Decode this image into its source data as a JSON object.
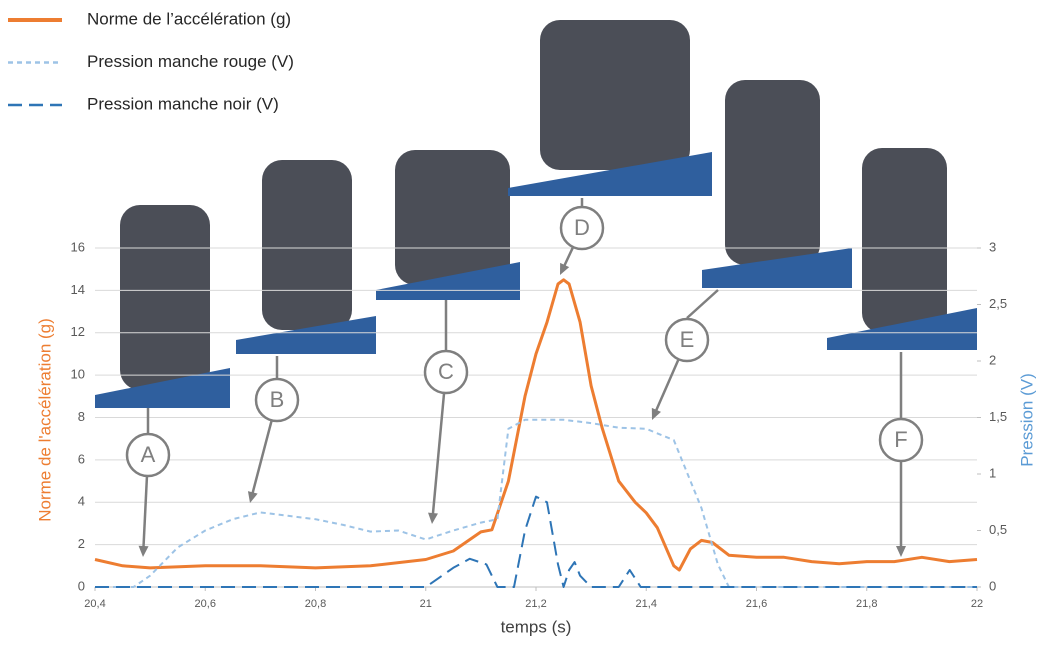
{
  "chart_data": {
    "type": "line",
    "xlabel": "temps (s)",
    "ylabel": "Norme de l'accélération (g)",
    "y2label": "Pression (V)",
    "xlim": [
      20.4,
      22
    ],
    "xticks": [
      {
        "value": 20.4,
        "label": "20,4"
      },
      {
        "value": 20.6,
        "label": "20,6"
      },
      {
        "value": 20.8,
        "label": "20,8"
      },
      21,
      {
        "value": 21.2,
        "label": "21,2"
      },
      {
        "value": 21.4,
        "label": "21,4"
      },
      {
        "value": 21.6,
        "label": "21,6"
      },
      {
        "value": 21.8,
        "label": "21,8"
      },
      22
    ],
    "ylim": [
      0,
      16
    ],
    "yticks": [
      0,
      2,
      4,
      6,
      8,
      10,
      12,
      14,
      16
    ],
    "y2lim": [
      0,
      3
    ],
    "y2ticks": [
      0,
      {
        "value": 0.5,
        "label": "0,5"
      },
      1,
      {
        "value": 1.5,
        "label": "1,5"
      },
      2,
      {
        "value": 2.5,
        "label": "2,5"
      },
      3
    ],
    "grid": true,
    "legend": "top-left",
    "annotations": [
      "A",
      "B",
      "C",
      "D",
      "E",
      "F"
    ],
    "series": [
      {
        "name": "Norme de l’accélération (g)",
        "color": "#ed7d31",
        "dash": "solid",
        "x": [
          20.4,
          20.45,
          20.5,
          20.6,
          20.7,
          20.8,
          20.9,
          21.0,
          21.05,
          21.1,
          21.12,
          21.15,
          21.18,
          21.2,
          21.22,
          21.24,
          21.25,
          21.26,
          21.28,
          21.3,
          21.32,
          21.35,
          21.38,
          21.4,
          21.42,
          21.45,
          21.46,
          21.48,
          21.5,
          21.52,
          21.55,
          21.6,
          21.65,
          21.7,
          21.75,
          21.8,
          21.85,
          21.9,
          21.95,
          22.0
        ],
        "values": [
          1.3,
          1.0,
          0.9,
          1.0,
          1.0,
          0.9,
          1.0,
          1.3,
          1.7,
          2.6,
          2.7,
          5,
          9,
          11,
          12.5,
          14.3,
          14.5,
          14.3,
          12.5,
          9.5,
          7.5,
          5,
          4,
          3.5,
          2.8,
          1.0,
          0.8,
          1.8,
          2.2,
          2.1,
          1.5,
          1.4,
          1.4,
          1.2,
          1.1,
          1.2,
          1.2,
          1.4,
          1.2,
          1.3
        ]
      },
      {
        "name": "Pression manche rouge (V)",
        "color": "#9dc3e6",
        "dash": "short",
        "axis": "y2",
        "x": [
          20.4,
          20.47,
          20.5,
          20.55,
          20.6,
          20.65,
          20.7,
          20.75,
          20.8,
          20.85,
          20.9,
          20.95,
          21.0,
          21.05,
          21.1,
          21.13,
          21.15,
          21.18,
          21.25,
          21.3,
          21.35,
          21.4,
          21.45,
          21.5,
          21.53,
          21.55,
          22.0
        ],
        "values": [
          0,
          0,
          0.1,
          0.35,
          0.5,
          0.6,
          0.66,
          0.63,
          0.6,
          0.55,
          0.49,
          0.5,
          0.42,
          0.5,
          0.57,
          0.6,
          1.4,
          1.48,
          1.48,
          1.45,
          1.41,
          1.4,
          1.3,
          0.7,
          0.2,
          0,
          0
        ]
      },
      {
        "name": "Pression manche noir (V)",
        "color": "#2e75b6",
        "dash": "long",
        "axis": "y2",
        "x": [
          20.4,
          21.0,
          21.05,
          21.08,
          21.11,
          21.13,
          21.16,
          21.18,
          21.2,
          21.22,
          21.24,
          21.25,
          21.26,
          21.27,
          21.28,
          21.3,
          21.35,
          21.37,
          21.39,
          22.0
        ],
        "values": [
          0,
          0,
          0.17,
          0.25,
          0.2,
          0,
          0,
          0.5,
          0.8,
          0.75,
          0.2,
          0,
          0.15,
          0.22,
          0.1,
          0,
          0,
          0.15,
          0,
          0
        ]
      }
    ]
  }
}
